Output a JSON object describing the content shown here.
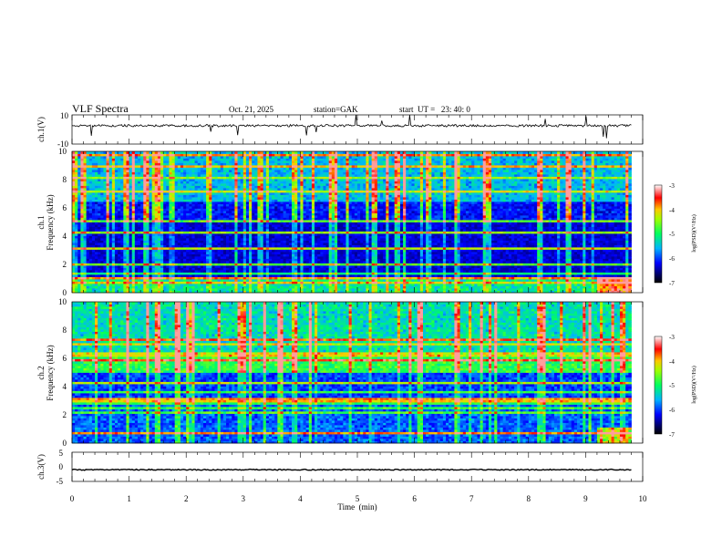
{
  "header": {
    "title": "VLF Spectra",
    "date": "Oct. 21, 2025",
    "station": "station=GAK",
    "start_ut": "start  UT =   23: 40: 0"
  },
  "chart_data": [
    {
      "type": "line",
      "name": "ch1-waveform",
      "ylabel": "ch.1(V)",
      "ylim": [
        -10,
        10
      ],
      "yticks": [
        "10",
        "-10"
      ],
      "xlim": [
        0,
        10
      ],
      "baseline_value": 2.6,
      "trace_end_min": 9.8
    },
    {
      "type": "heatmap",
      "name": "ch1-spectrogram",
      "ylabel_channel": "ch.1",
      "ylabel": "Frequency (kHz)",
      "ylim": [
        0,
        10
      ],
      "yticks": [
        "0",
        "2",
        "4",
        "6",
        "8",
        "10"
      ],
      "xlim": [
        0,
        10
      ],
      "data_end_min": 9.8,
      "colorbar": {
        "label": "log(PSD)(V²/Hz)",
        "range": [
          -7,
          -3
        ],
        "ticks": [
          "-3",
          "-4",
          "-5",
          "-6",
          "-7"
        ]
      }
    },
    {
      "type": "heatmap",
      "name": "ch2-spectrogram",
      "ylabel_channel": "ch.2",
      "ylabel": "Frequency (kHz)",
      "ylim": [
        0,
        10
      ],
      "yticks": [
        "0",
        "2",
        "4",
        "6",
        "8",
        "10"
      ],
      "xlim": [
        0,
        10
      ],
      "data_end_min": 9.8,
      "colorbar": {
        "label": "log(PSD)(V²/Hz)",
        "range": [
          -7,
          -3
        ],
        "ticks": [
          "-3",
          "-4",
          "-5",
          "-6",
          "-7"
        ]
      }
    },
    {
      "type": "line",
      "name": "ch3-waveform",
      "ylabel": "ch.3(V)",
      "ylim": [
        -5,
        5
      ],
      "yticks": [
        "5",
        "0",
        "-5"
      ],
      "xlim": [
        0,
        10
      ],
      "baseline_value": -1.0,
      "trace_end_min": 9.8
    }
  ],
  "xaxis": {
    "label": "Time  (min)",
    "ticks": [
      "0",
      "1",
      "2",
      "3",
      "4",
      "5",
      "6",
      "7",
      "8",
      "9",
      "10"
    ]
  },
  "colors": {
    "trace": "#000000",
    "axis": "#000000"
  }
}
